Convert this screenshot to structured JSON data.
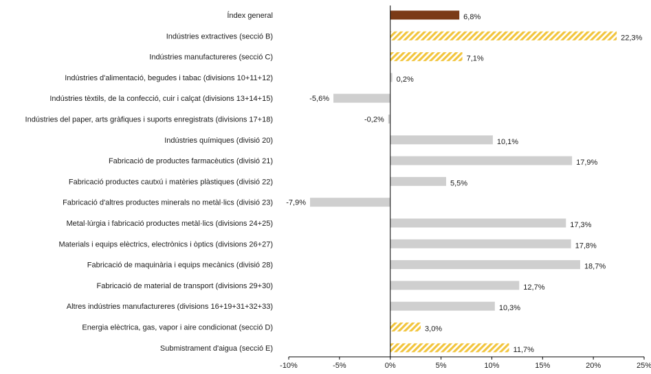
{
  "chart_data": {
    "type": "bar",
    "orientation": "horizontal",
    "categories": [
      "Índex general",
      "Indústries extractives (secció B)",
      "Indústries manufactureres (secció C)",
      "Indústries d'alimentació, begudes i tabac (divisions 10+11+12)",
      "Indústries tèxtils, de la confecció, cuir i calçat (divisions 13+14+15)",
      "Indústries del paper, arts gràfiques i suports enregistrats (divisions 17+18)",
      "Indústries químiques (divisió 20)",
      "Fabricació de productes farmacèutics (divisió 21)",
      "Fabricació productes cautxú i matèries plàstiques (divisió 22)",
      "Fabricació d'altres productes minerals no metàl·lics (divisió 23)",
      "Metal·lúrgia i fabricació productes metàl·lics (divisions 24+25)",
      "Materials i equips elèctrics, electrònics i òptics (divisions 26+27)",
      "Fabricació de maquinària i equips mecànics (divisió 28)",
      "Fabricació de material de transport (divisions 29+30)",
      "Altres indústries manufactureres (divisions 16+19+31+32+33)",
      "Energia elèctrica, gas, vapor i aire condicionat (secció D)",
      "Submistrament d'aigua (secció E)"
    ],
    "values": [
      6.8,
      22.3,
      7.1,
      0.2,
      -5.6,
      -0.2,
      10.1,
      17.9,
      5.5,
      -7.9,
      17.3,
      17.8,
      18.7,
      12.7,
      10.3,
      3.0,
      11.7
    ],
    "value_labels": [
      "6,8%",
      "22,3%",
      "7,1%",
      "0,2%",
      "-5,6%",
      "-0,2%",
      "10,1%",
      "17,9%",
      "5,5%",
      "-7,9%",
      "17,3%",
      "17,8%",
      "18,7%",
      "12,7%",
      "10,3%",
      "3,0%",
      "11,7%"
    ],
    "styles": [
      "solid-brown",
      "hatched-yellow",
      "hatched-yellow",
      "gray",
      "gray",
      "gray",
      "gray",
      "gray",
      "gray",
      "gray",
      "gray",
      "gray",
      "gray",
      "gray",
      "gray",
      "hatched-yellow",
      "hatched-yellow"
    ],
    "xlim": [
      -10,
      25
    ],
    "xticks": [
      -10,
      -5,
      0,
      5,
      10,
      15,
      20,
      25
    ],
    "xtick_labels": [
      "-10%",
      "-5%",
      "0%",
      "5%",
      "10%",
      "15%",
      "20%",
      "25%"
    ],
    "title": "",
    "xlabel": "",
    "ylabel": "",
    "grid": false,
    "legend": "none",
    "colors": {
      "solid-brown": "#7b3a17",
      "hatched-yellow": "#f2c53d",
      "gray": "#cfcfcf",
      "text": "#1a1a1a",
      "axis": "#000000"
    }
  }
}
